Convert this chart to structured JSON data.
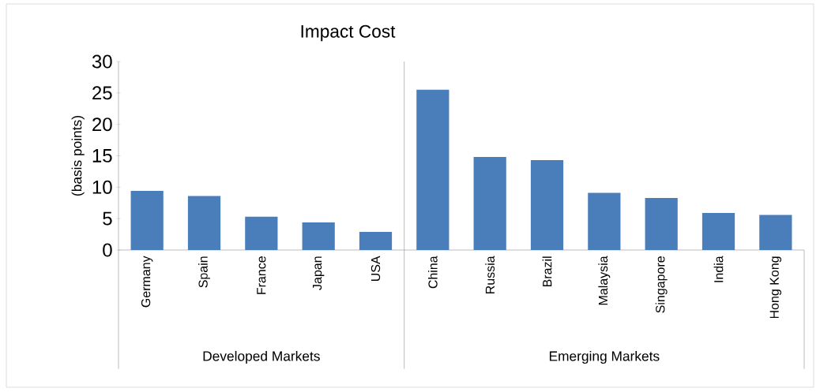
{
  "chart_data": {
    "type": "bar",
    "title": "Impact Cost",
    "ylabel": "(basis points)",
    "categories": [
      "Germany",
      "Spain",
      "France",
      "Japan",
      "USA",
      "China",
      "Russia",
      "Brazil",
      "Malaysia",
      "Singapore",
      "India",
      "Hong Kong"
    ],
    "values": [
      9.4,
      8.6,
      5.3,
      4.4,
      2.9,
      25.5,
      14.8,
      14.3,
      9.1,
      8.3,
      5.9,
      5.6
    ],
    "color": "#4a7ebb",
    "ylim": [
      0,
      30
    ],
    "yticks": [
      0,
      5,
      10,
      15,
      20,
      25,
      30
    ],
    "grid": false,
    "annotations": [
      "Developed Markets",
      "Emerging Markets"
    ]
  }
}
